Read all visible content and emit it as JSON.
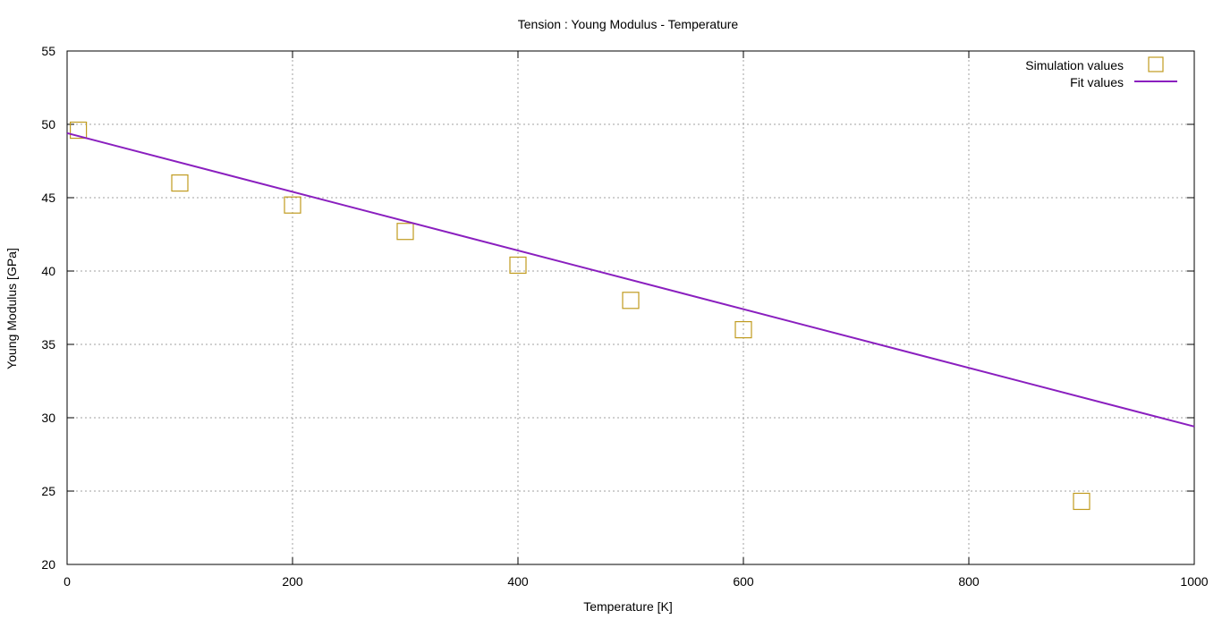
{
  "chart_data": {
    "type": "scatter",
    "title": "Tension : Young Modulus - Temperature",
    "xlabel": "Temperature [K]",
    "ylabel": "Young Modulus [GPa]",
    "xlim": [
      0,
      1000
    ],
    "ylim": [
      20,
      55
    ],
    "xticks": [
      0,
      200,
      400,
      600,
      800,
      1000
    ],
    "yticks": [
      20,
      25,
      30,
      35,
      40,
      45,
      50,
      55
    ],
    "grid": true,
    "legend_position": "top-right",
    "series": [
      {
        "name": "Simulation values",
        "kind": "points",
        "marker": "open-square",
        "color": "#c09b1f",
        "x": [
          10,
          100,
          200,
          300,
          400,
          500,
          600,
          900
        ],
        "y": [
          49.6,
          46.0,
          44.5,
          42.7,
          40.4,
          38.0,
          36.0,
          24.3
        ]
      },
      {
        "name": "Fit values",
        "kind": "line",
        "color": "#8a1fbf",
        "x": [
          0,
          1000
        ],
        "y": [
          49.4,
          29.4
        ]
      }
    ]
  }
}
